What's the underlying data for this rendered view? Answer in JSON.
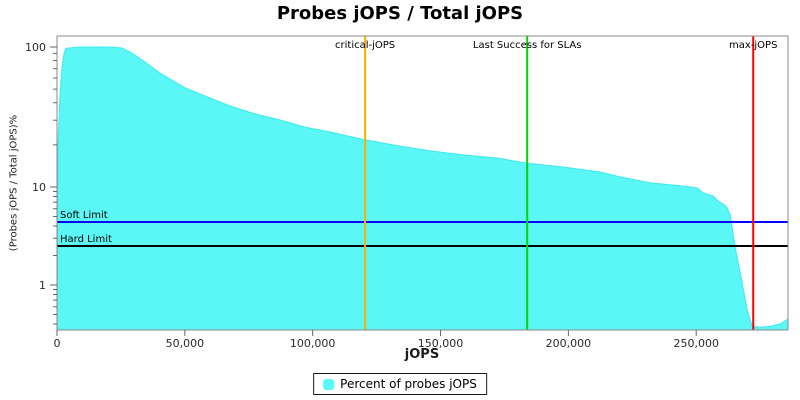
{
  "page": {
    "title": "Probes jOPS / Total jOPS"
  },
  "chart_data": {
    "type": "area",
    "title": "Probes jOPS / Total jOPS",
    "xlabel": "jOPS",
    "ylabel": "(Probes jOPS / Total jOPS)%",
    "x_axis": {
      "min": 0,
      "max": 285900,
      "ticks": [
        0,
        50000,
        100000,
        150000,
        200000,
        250000
      ],
      "tick_labels": [
        "0",
        "50,000",
        "100,000",
        "150,000",
        "200,000",
        "250,000"
      ]
    },
    "y_axis": {
      "scale": "log",
      "ticks": [
        100,
        10,
        1
      ],
      "tick_labels": [
        "100",
        "10",
        "1"
      ],
      "minor_ticks": [
        90,
        80,
        70,
        60,
        50,
        40,
        30,
        20,
        9,
        8,
        7,
        6,
        5,
        4,
        3,
        2,
        0.9,
        0.8,
        0.7,
        0.6,
        0.5,
        0.4
      ]
    },
    "series": [
      {
        "name": "Percent of probes jOPS",
        "color": "#5BF6F6",
        "edge_color": "#3FE9E9",
        "points": [
          [
            0,
            0.35
          ],
          [
            390,
            20
          ],
          [
            1170,
            45
          ],
          [
            1960,
            71
          ],
          [
            2740,
            90
          ],
          [
            3520,
            98
          ],
          [
            9000,
            100
          ],
          [
            20500,
            100
          ],
          [
            25400,
            98.4
          ],
          [
            29300,
            90.6
          ],
          [
            34400,
            78.2
          ],
          [
            40300,
            65.2
          ],
          [
            46200,
            56.2
          ],
          [
            50100,
            51
          ],
          [
            57900,
            44.7
          ],
          [
            67700,
            37.9
          ],
          [
            77500,
            33.2
          ],
          [
            87200,
            30.1
          ],
          [
            97000,
            26.8
          ],
          [
            106800,
            24.7
          ],
          [
            120500,
            21.7
          ],
          [
            134200,
            19.6
          ],
          [
            145900,
            18.1
          ],
          [
            159600,
            16.9
          ],
          [
            172100,
            16.1
          ],
          [
            183900,
            14.8
          ],
          [
            197900,
            13.9
          ],
          [
            212400,
            12.8
          ],
          [
            220200,
            11.8
          ],
          [
            232000,
            10.7
          ],
          [
            243700,
            10.2
          ],
          [
            250300,
            9.8
          ],
          [
            252700,
            8.7
          ],
          [
            256600,
            8.1
          ],
          [
            258500,
            7.2
          ],
          [
            260900,
            6.6
          ],
          [
            262100,
            6.1
          ],
          [
            263300,
            5.2
          ],
          [
            265200,
            2.45
          ],
          [
            268000,
            1.05
          ],
          [
            269900,
            0.56
          ],
          [
            271900,
            0.38
          ],
          [
            275000,
            0.37
          ],
          [
            278900,
            0.38
          ],
          [
            282800,
            0.4
          ],
          [
            285900,
            0.45
          ]
        ]
      }
    ],
    "vlines": [
      {
        "label": "critical-jOPS",
        "x": 120500,
        "color": "#FFAE00"
      },
      {
        "label": "Last Success for SLAs",
        "x": 183900,
        "color": "#00D600"
      },
      {
        "label": "max-jOPS",
        "x": 272300,
        "color": "#FF0000"
      }
    ],
    "hlines": [
      {
        "label": "Soft Limit",
        "y": 4.4,
        "color": "#0000FF"
      },
      {
        "label": "Hard Limit",
        "y": 2.5,
        "color": "#000000"
      }
    ],
    "legend": {
      "label": "Percent of probes jOPS",
      "position": "bottom"
    }
  }
}
